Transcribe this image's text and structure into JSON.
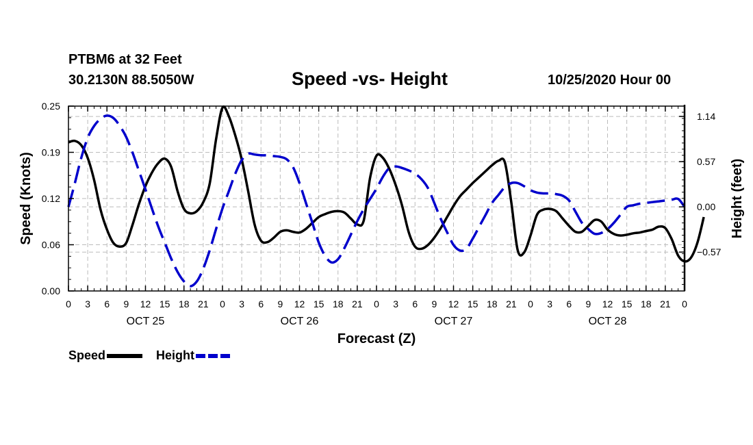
{
  "header": {
    "station": "PTBM6 at 32 Feet",
    "coords": "30.2130N 88.5050W",
    "title": "Speed -vs- Height",
    "datetime": "10/25/2020 Hour 00"
  },
  "chart_data": {
    "type": "line",
    "title": "Speed -vs- Height",
    "xlabel": "Forecast (Z)",
    "ylabel_left": "Speed (Knots)",
    "ylabel_right": "Height (feet)",
    "x_range_hours": [
      0,
      96
    ],
    "x_tick_labels": [
      "0",
      "3",
      "6",
      "9",
      "12",
      "15",
      "18",
      "21",
      "0",
      "3",
      "6",
      "9",
      "12",
      "15",
      "18",
      "21",
      "0",
      "3",
      "6",
      "9",
      "12",
      "15",
      "18",
      "21",
      "0",
      "3",
      "6",
      "9",
      "12",
      "15",
      "18",
      "21",
      "0"
    ],
    "day_labels": [
      {
        "label": "OCT 25",
        "hour": 12
      },
      {
        "label": "OCT 26",
        "hour": 36
      },
      {
        "label": "OCT 27",
        "hour": 60
      },
      {
        "label": "OCT 28",
        "hour": 84
      }
    ],
    "y_left": {
      "min": 0.0,
      "max": 0.25,
      "ticks": [
        "0.00",
        "0.06",
        "0.12",
        "0.19",
        "0.25"
      ]
    },
    "y_right": {
      "min": -1.06,
      "max": 1.27,
      "ticks": [
        {
          "value": 1.14,
          "label": "1.14"
        },
        {
          "value": 0.57,
          "label": "0.57"
        },
        {
          "value": 0.0,
          "label": "0.00"
        },
        {
          "value": -0.57,
          "label": "−0.57"
        }
      ]
    },
    "grid": true,
    "series": [
      {
        "name": "Speed",
        "axis": "left",
        "color": "#000000",
        "dash": "solid",
        "points": [
          [
            0,
            0.201
          ],
          [
            1,
            0.203
          ],
          [
            2,
            0.197
          ],
          [
            3,
            0.18
          ],
          [
            4,
            0.15
          ],
          [
            5,
            0.11
          ],
          [
            6,
            0.083
          ],
          [
            7,
            0.065
          ],
          [
            8,
            0.06
          ],
          [
            9,
            0.065
          ],
          [
            10,
            0.09
          ],
          [
            11,
            0.118
          ],
          [
            12,
            0.142
          ],
          [
            13,
            0.16
          ],
          [
            14,
            0.173
          ],
          [
            15,
            0.179
          ],
          [
            16,
            0.168
          ],
          [
            17,
            0.135
          ],
          [
            18,
            0.111
          ],
          [
            19,
            0.105
          ],
          [
            20,
            0.108
          ],
          [
            21,
            0.12
          ],
          [
            22,
            0.145
          ],
          [
            23,
            0.205
          ],
          [
            24,
            0.248
          ],
          [
            25,
            0.236
          ],
          [
            26,
            0.21
          ],
          [
            27,
            0.178
          ],
          [
            28,
            0.135
          ],
          [
            29,
            0.09
          ],
          [
            30,
            0.068
          ],
          [
            31,
            0.066
          ],
          [
            32,
            0.072
          ],
          [
            33,
            0.08
          ],
          [
            34,
            0.082
          ],
          [
            35,
            0.08
          ],
          [
            36,
            0.079
          ],
          [
            37,
            0.084
          ],
          [
            38,
            0.092
          ],
          [
            39,
            0.1
          ],
          [
            40,
            0.104
          ],
          [
            41,
            0.107
          ],
          [
            42,
            0.108
          ],
          [
            43,
            0.106
          ],
          [
            44,
            0.098
          ],
          [
            45,
            0.09
          ],
          [
            46,
            0.095
          ],
          [
            47,
            0.153
          ],
          [
            48,
            0.183
          ],
          [
            49,
            0.18
          ],
          [
            50,
            0.165
          ],
          [
            51,
            0.143
          ],
          [
            52,
            0.115
          ],
          [
            53,
            0.08
          ],
          [
            54,
            0.06
          ],
          [
            55,
            0.057
          ],
          [
            56,
            0.062
          ],
          [
            57,
            0.072
          ],
          [
            58,
            0.085
          ],
          [
            59,
            0.1
          ],
          [
            60,
            0.115
          ],
          [
            61,
            0.128
          ],
          [
            62,
            0.137
          ],
          [
            63,
            0.146
          ],
          [
            64,
            0.154
          ],
          [
            65,
            0.162
          ],
          [
            66,
            0.17
          ],
          [
            67,
            0.176
          ],
          [
            68,
            0.174
          ],
          [
            69,
            0.12
          ],
          [
            70,
            0.055
          ],
          [
            71,
            0.052
          ],
          [
            72,
            0.075
          ],
          [
            73,
            0.103
          ],
          [
            74,
            0.11
          ],
          [
            75,
            0.111
          ],
          [
            76,
            0.108
          ],
          [
            77,
            0.098
          ],
          [
            78,
            0.088
          ],
          [
            79,
            0.08
          ],
          [
            80,
            0.08
          ],
          [
            81,
            0.088
          ],
          [
            82,
            0.096
          ],
          [
            83,
            0.094
          ],
          [
            84,
            0.083
          ],
          [
            85,
            0.077
          ],
          [
            86,
            0.075
          ],
          [
            87,
            0.076
          ],
          [
            88,
            0.078
          ],
          [
            89,
            0.079
          ],
          [
            90,
            0.081
          ],
          [
            91,
            0.083
          ],
          [
            92,
            0.087
          ],
          [
            93,
            0.085
          ],
          [
            94,
            0.07
          ],
          [
            95,
            0.048
          ],
          [
            96,
            0.04
          ],
          [
            97,
            0.045
          ],
          [
            98,
            0.065
          ],
          [
            99,
            0.1
          ]
        ]
      },
      {
        "name": "Height",
        "axis": "right",
        "color": "#0000cc",
        "dash": "dashed",
        "points": [
          [
            0,
            0.0
          ],
          [
            1,
            0.3
          ],
          [
            2,
            0.62
          ],
          [
            3,
            0.87
          ],
          [
            4,
            1.02
          ],
          [
            5,
            1.11
          ],
          [
            6,
            1.15
          ],
          [
            7,
            1.12
          ],
          [
            8,
            1.02
          ],
          [
            9,
            0.88
          ],
          [
            10,
            0.68
          ],
          [
            11,
            0.45
          ],
          [
            12,
            0.22
          ],
          [
            13,
            -0.02
          ],
          [
            14,
            -0.25
          ],
          [
            15,
            -0.45
          ],
          [
            16,
            -0.65
          ],
          [
            17,
            -0.82
          ],
          [
            18,
            -0.94
          ],
          [
            19,
            -1.0
          ],
          [
            20,
            -0.94
          ],
          [
            21,
            -0.78
          ],
          [
            22,
            -0.55
          ],
          [
            23,
            -0.28
          ],
          [
            24,
            -0.02
          ],
          [
            25,
            0.2
          ],
          [
            26,
            0.42
          ],
          [
            27,
            0.59
          ],
          [
            28,
            0.67
          ],
          [
            29,
            0.66
          ],
          [
            30,
            0.65
          ],
          [
            31,
            0.65
          ],
          [
            32,
            0.64
          ],
          [
            33,
            0.63
          ],
          [
            34,
            0.6
          ],
          [
            35,
            0.5
          ],
          [
            36,
            0.3
          ],
          [
            37,
            0.05
          ],
          [
            38,
            -0.2
          ],
          [
            39,
            -0.45
          ],
          [
            40,
            -0.62
          ],
          [
            41,
            -0.7
          ],
          [
            42,
            -0.66
          ],
          [
            43,
            -0.52
          ],
          [
            44,
            -0.35
          ],
          [
            45,
            -0.18
          ],
          [
            46,
            -0.03
          ],
          [
            47,
            0.1
          ],
          [
            48,
            0.23
          ],
          [
            49,
            0.38
          ],
          [
            50,
            0.49
          ],
          [
            51,
            0.51
          ],
          [
            52,
            0.49
          ],
          [
            53,
            0.46
          ],
          [
            54,
            0.42
          ],
          [
            55,
            0.35
          ],
          [
            56,
            0.24
          ],
          [
            57,
            0.05
          ],
          [
            58,
            -0.15
          ],
          [
            59,
            -0.32
          ],
          [
            60,
            -0.48
          ],
          [
            61,
            -0.55
          ],
          [
            62,
            -0.53
          ],
          [
            63,
            -0.4
          ],
          [
            64,
            -0.25
          ],
          [
            65,
            -0.1
          ],
          [
            66,
            0.05
          ],
          [
            67,
            0.15
          ],
          [
            68,
            0.25
          ],
          [
            69,
            0.3
          ],
          [
            70,
            0.3
          ],
          [
            71,
            0.26
          ],
          [
            72,
            0.21
          ],
          [
            73,
            0.18
          ],
          [
            74,
            0.17
          ],
          [
            75,
            0.17
          ],
          [
            76,
            0.16
          ],
          [
            77,
            0.14
          ],
          [
            78,
            0.08
          ],
          [
            79,
            -0.06
          ],
          [
            80,
            -0.2
          ],
          [
            81,
            -0.28
          ],
          [
            82,
            -0.34
          ],
          [
            83,
            -0.33
          ],
          [
            84,
            -0.28
          ],
          [
            85,
            -0.2
          ],
          [
            86,
            -0.1
          ],
          [
            87,
            0.0
          ],
          [
            88,
            0.02
          ],
          [
            89,
            0.04
          ],
          [
            90,
            0.05
          ],
          [
            91,
            0.06
          ],
          [
            92,
            0.07
          ],
          [
            93,
            0.08
          ],
          [
            94,
            0.09
          ],
          [
            95,
            0.1
          ],
          [
            96,
            0.0
          ]
        ]
      }
    ],
    "legend": [
      {
        "label": "Speed",
        "color": "#000000",
        "dash": "solid"
      },
      {
        "label": "Height",
        "color": "#0000cc",
        "dash": "dashed"
      }
    ],
    "legend_position": "bottom-left"
  }
}
